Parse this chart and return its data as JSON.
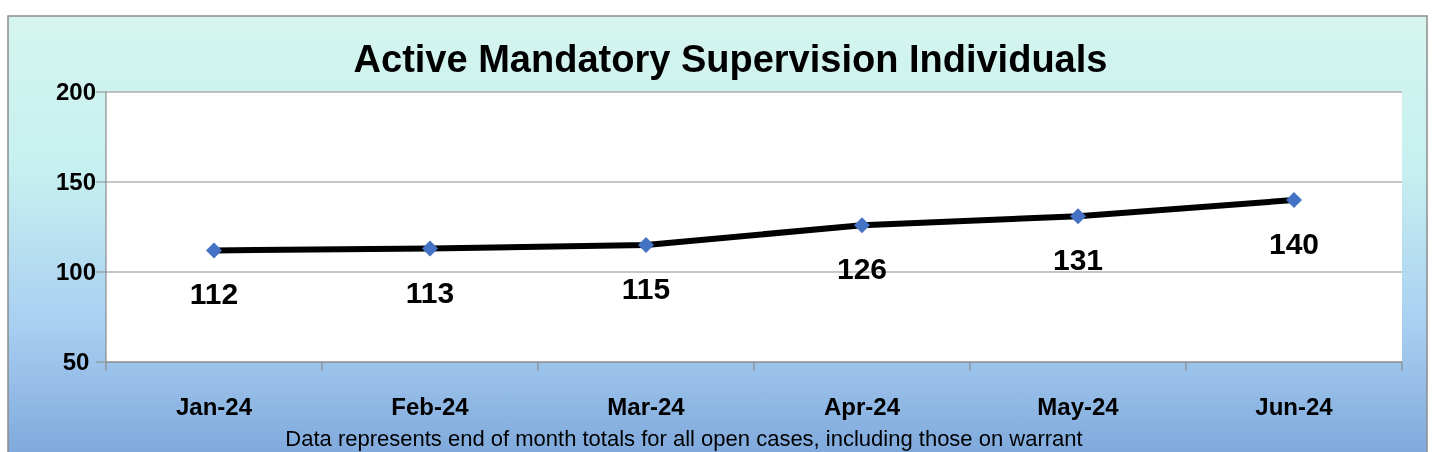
{
  "chart_data": {
    "type": "line",
    "title": "Active Mandatory Supervision Individuals",
    "categories": [
      "Jan-24",
      "Feb-24",
      "Mar-24",
      "Apr-24",
      "May-24",
      "Jun-24"
    ],
    "series": [
      {
        "color": "#000000",
        "colors": [
          "#4472c4",
          "#4472c4",
          "#4472c4",
          "#4472c4",
          "#4472c4",
          "#4472c4"
        ],
        "values": [
          112,
          113,
          115,
          126,
          131,
          140
        ]
      }
    ],
    "ylim": [
      50,
      200
    ],
    "yticks": [
      50,
      100,
      150,
      200
    ],
    "grid": "y",
    "marker": "diamond",
    "line_style": "solid",
    "data_labels": true,
    "annotations": [
      "Data represents end of month totals for all open cases, including those on warrant"
    ]
  }
}
